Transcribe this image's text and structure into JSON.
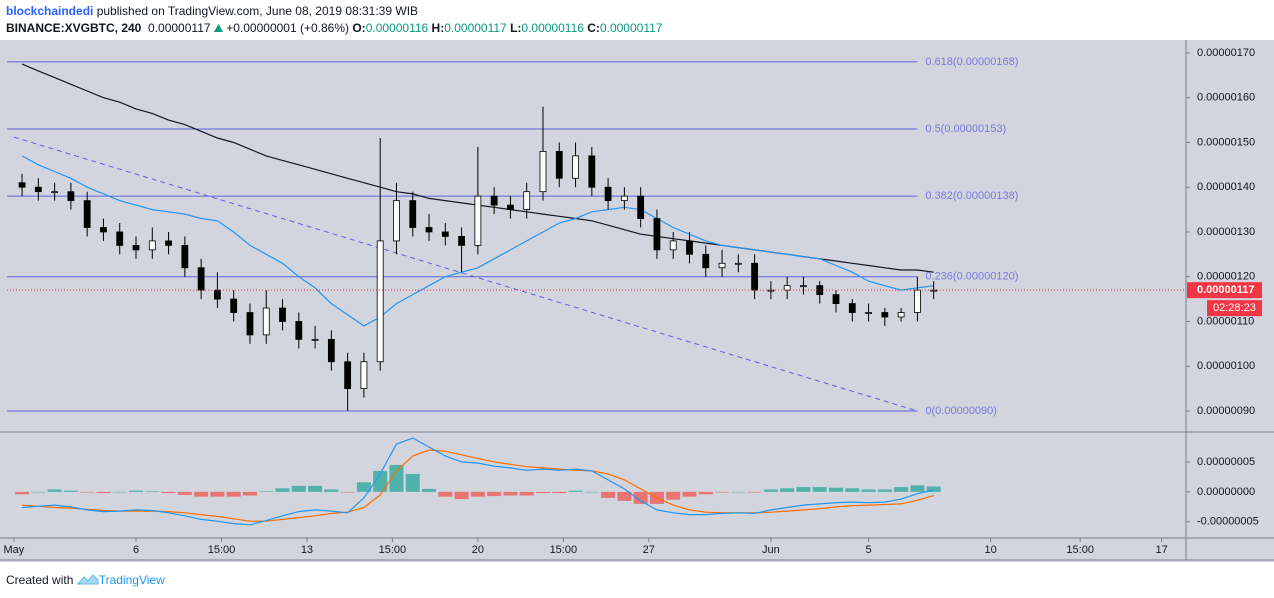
{
  "header": {
    "author": "blockchaindedi",
    "published": "published on TradingView.com, June 08, 2019 08:31:39 WIB",
    "symbol": "BINANCE:XVGBTC, 240",
    "last": "0.00000117",
    "change": "+0.00000001 (+0.86%)",
    "ohlc": [
      {
        "label": "O:",
        "value": "0.00000116"
      },
      {
        "label": "H:",
        "value": "0.00000117"
      },
      {
        "label": "L:",
        "value": "0.00000116"
      },
      {
        "label": "C:",
        "value": "0.00000117"
      }
    ]
  },
  "footer": {
    "text": "Created with",
    "brand": "TradingView"
  },
  "chart_data": [
    {
      "type": "candlestick",
      "x": [
        2,
        6,
        10,
        14,
        18,
        22,
        26,
        30,
        34,
        38,
        42,
        46,
        50,
        54,
        58,
        62,
        66,
        70,
        74,
        78,
        82,
        86,
        90,
        94,
        98,
        102,
        106,
        110,
        114,
        118,
        122,
        126,
        130,
        134,
        138,
        142,
        146,
        150,
        154,
        158,
        162,
        166,
        170,
        174,
        178,
        182,
        186,
        190,
        194,
        198,
        202,
        206,
        210,
        214,
        218,
        222,
        226
      ],
      "open": [
        1.41e-06,
        1.4e-06,
        1.39e-06,
        1.39e-06,
        1.37e-06,
        1.31e-06,
        1.3e-06,
        1.27e-06,
        1.26e-06,
        1.28e-06,
        1.27e-06,
        1.22e-06,
        1.17e-06,
        1.15e-06,
        1.12e-06,
        1.07e-06,
        1.13e-06,
        1.1e-06,
        1.06e-06,
        1.06e-06,
        1.01e-06,
        9.5e-07,
        1.01e-06,
        1.28e-06,
        1.37e-06,
        1.31e-06,
        1.3e-06,
        1.29e-06,
        1.27e-06,
        1.38e-06,
        1.36e-06,
        1.35e-06,
        1.39e-06,
        1.48e-06,
        1.42e-06,
        1.47e-06,
        1.4e-06,
        1.37e-06,
        1.38e-06,
        1.33e-06,
        1.26e-06,
        1.28e-06,
        1.25e-06,
        1.22e-06,
        1.23e-06,
        1.23e-06,
        1.17e-06,
        1.17e-06,
        1.18e-06,
        1.18e-06,
        1.16e-06,
        1.14e-06,
        1.12e-06,
        1.12e-06,
        1.11e-06,
        1.12e-06,
        1.17e-06
      ],
      "high": [
        1.43e-06,
        1.42e-06,
        1.41e-06,
        1.41e-06,
        1.39e-06,
        1.33e-06,
        1.32e-06,
        1.29e-06,
        1.31e-06,
        1.3e-06,
        1.29e-06,
        1.24e-06,
        1.21e-06,
        1.17e-06,
        1.14e-06,
        1.17e-06,
        1.15e-06,
        1.12e-06,
        1.09e-06,
        1.08e-06,
        1.03e-06,
        1.03e-06,
        1.51e-06,
        1.41e-06,
        1.39e-06,
        1.34e-06,
        1.32e-06,
        1.31e-06,
        1.49e-06,
        1.4e-06,
        1.38e-06,
        1.41e-06,
        1.58e-06,
        1.5e-06,
        1.5e-06,
        1.49e-06,
        1.42e-06,
        1.4e-06,
        1.4e-06,
        1.35e-06,
        1.3e-06,
        1.3e-06,
        1.27e-06,
        1.26e-06,
        1.25e-06,
        1.25e-06,
        1.19e-06,
        1.2e-06,
        1.2e-06,
        1.19e-06,
        1.17e-06,
        1.15e-06,
        1.14e-06,
        1.13e-06,
        1.13e-06,
        1.2e-06,
        1.19e-06
      ],
      "low": [
        1.38e-06,
        1.37e-06,
        1.37e-06,
        1.35e-06,
        1.29e-06,
        1.28e-06,
        1.25e-06,
        1.24e-06,
        1.24e-06,
        1.25e-06,
        1.2e-06,
        1.15e-06,
        1.13e-06,
        1.1e-06,
        1.05e-06,
        1.05e-06,
        1.08e-06,
        1.04e-06,
        1.04e-06,
        9.9e-07,
        9e-07,
        9.3e-07,
        9.9e-07,
        1.25e-06,
        1.29e-06,
        1.28e-06,
        1.27e-06,
        1.21e-06,
        1.25e-06,
        1.34e-06,
        1.33e-06,
        1.33e-06,
        1.37e-06,
        1.4e-06,
        1.4e-06,
        1.38e-06,
        1.35e-06,
        1.35e-06,
        1.31e-06,
        1.24e-06,
        1.24e-06,
        1.23e-06,
        1.2e-06,
        1.2e-06,
        1.21e-06,
        1.15e-06,
        1.15e-06,
        1.15e-06,
        1.16e-06,
        1.14e-06,
        1.12e-06,
        1.1e-06,
        1.1e-06,
        1.09e-06,
        1.1e-06,
        1.1e-06,
        1.15e-06
      ],
      "close": [
        1.4e-06,
        1.39e-06,
        1.39e-06,
        1.37e-06,
        1.31e-06,
        1.3e-06,
        1.27e-06,
        1.26e-06,
        1.28e-06,
        1.27e-06,
        1.22e-06,
        1.17e-06,
        1.15e-06,
        1.12e-06,
        1.07e-06,
        1.13e-06,
        1.1e-06,
        1.06e-06,
        1.06e-06,
        1.01e-06,
        9.5e-07,
        1.01e-06,
        1.28e-06,
        1.37e-06,
        1.31e-06,
        1.3e-06,
        1.29e-06,
        1.27e-06,
        1.38e-06,
        1.36e-06,
        1.35e-06,
        1.39e-06,
        1.48e-06,
        1.42e-06,
        1.47e-06,
        1.4e-06,
        1.37e-06,
        1.38e-06,
        1.33e-06,
        1.26e-06,
        1.28e-06,
        1.25e-06,
        1.22e-06,
        1.23e-06,
        1.23e-06,
        1.17e-06,
        1.17e-06,
        1.18e-06,
        1.18e-06,
        1.16e-06,
        1.14e-06,
        1.12e-06,
        1.12e-06,
        1.11e-06,
        1.12e-06,
        1.17e-06,
        1.17e-06
      ],
      "up_color": "#ffffff",
      "down_color": "#000000",
      "lines": [
        {
          "color": "#131722",
          "values": [
            1.675e-06,
            1.66e-06,
            1.645e-06,
            1.63e-06,
            1.615e-06,
            1.6e-06,
            1.59e-06,
            1.575e-06,
            1.565e-06,
            1.55e-06,
            1.54e-06,
            1.525e-06,
            1.51e-06,
            1.5e-06,
            1.485e-06,
            1.47e-06,
            1.46e-06,
            1.45e-06,
            1.44e-06,
            1.43e-06,
            1.42e-06,
            1.41e-06,
            1.4e-06,
            1.39e-06,
            1.385e-06,
            1.375e-06,
            1.37e-06,
            1.365e-06,
            1.36e-06,
            1.355e-06,
            1.35e-06,
            1.345e-06,
            1.34e-06,
            1.335e-06,
            1.33e-06,
            1.325e-06,
            1.315e-06,
            1.305e-06,
            1.295e-06,
            1.29e-06,
            1.285e-06,
            1.28e-06,
            1.275e-06,
            1.27e-06,
            1.265e-06,
            1.26e-06,
            1.255e-06,
            1.25e-06,
            1.245e-06,
            1.24e-06,
            1.235e-06,
            1.23e-06,
            1.225e-06,
            1.22e-06,
            1.215e-06,
            1.215e-06,
            1.21e-06
          ]
        },
        {
          "color": "#2196f3",
          "values": [
            1.47e-06,
            1.45e-06,
            1.435e-06,
            1.42e-06,
            1.4e-06,
            1.385e-06,
            1.37e-06,
            1.36e-06,
            1.35e-06,
            1.345e-06,
            1.34e-06,
            1.33e-06,
            1.325e-06,
            1.3e-06,
            1.27e-06,
            1.25e-06,
            1.23e-06,
            1.2e-06,
            1.175e-06,
            1.14e-06,
            1.115e-06,
            1.09e-06,
            1.11e-06,
            1.14e-06,
            1.16e-06,
            1.18e-06,
            1.2e-06,
            1.21e-06,
            1.22e-06,
            1.24e-06,
            1.26e-06,
            1.28e-06,
            1.3e-06,
            1.32e-06,
            1.33e-06,
            1.345e-06,
            1.35e-06,
            1.355e-06,
            1.35e-06,
            1.33e-06,
            1.31e-06,
            1.295e-06,
            1.28e-06,
            1.27e-06,
            1.265e-06,
            1.26e-06,
            1.255e-06,
            1.25e-06,
            1.245e-06,
            1.24e-06,
            1.225e-06,
            1.21e-06,
            1.19e-06,
            1.18e-06,
            1.17e-06,
            1.175e-06,
            1.18e-06
          ]
        }
      ],
      "fib_color": "#5d63e0",
      "fib_levels": [
        {
          "value": 1.68e-06,
          "label": "0.618(0.00000168)"
        },
        {
          "value": 1.53e-06,
          "label": "0.5(0.00000153)"
        },
        {
          "value": 1.38e-06,
          "label": "0.382(0.00000138)"
        },
        {
          "value": 1.2e-06,
          "label": "0.236(0.00000120)"
        },
        {
          "value": 9e-07,
          "label": "0(0.00000090)"
        }
      ],
      "trendline": {
        "color": "#5d63e0",
        "x": [
          0,
          222
        ],
        "values": [
          1.512e-06,
          9e-07
        ]
      },
      "last_price": 1.17e-06,
      "last_price_label": "0.00000117",
      "countdown": "02:28:23",
      "price_tag_color": "#f23645",
      "xlim": [
        -1.7,
        288
      ],
      "xticks": [
        {
          "value": 0,
          "label": "May"
        },
        {
          "value": 30,
          "label": "6"
        },
        {
          "value": 51,
          "label": "15:00"
        },
        {
          "value": 72,
          "label": "13"
        },
        {
          "value": 93,
          "label": "15:00"
        },
        {
          "value": 114,
          "label": "20"
        },
        {
          "value": 135,
          "label": "15:00"
        },
        {
          "value": 156,
          "label": "27"
        },
        {
          "value": 186,
          "label": "Jun"
        },
        {
          "value": 210,
          "label": "5"
        },
        {
          "value": 240,
          "label": "10"
        },
        {
          "value": 262,
          "label": "15:00"
        },
        {
          "value": 282,
          "label": "17"
        }
      ],
      "ylim": [
        8.53e-07,
        1.72e-06
      ],
      "yticks": [
        {
          "value": 1.7e-06,
          "label": "0.00000170"
        },
        {
          "value": 1.6e-06,
          "label": "0.00000160"
        },
        {
          "value": 1.5e-06,
          "label": "0.00000150"
        },
        {
          "value": 1.4e-06,
          "label": "0.00000140"
        },
        {
          "value": 1.3e-06,
          "label": "0.00000130"
        },
        {
          "value": 1.2e-06,
          "label": "0.00000120"
        },
        {
          "value": 1.1e-06,
          "label": "0.00000110"
        },
        {
          "value": 1e-06,
          "label": "0.00000100"
        },
        {
          "value": 9e-07,
          "label": "0.00000090"
        }
      ]
    },
    {
      "type": "macd",
      "x": [
        2,
        6,
        10,
        14,
        18,
        22,
        26,
        30,
        34,
        38,
        42,
        46,
        50,
        54,
        58,
        62,
        66,
        70,
        74,
        78,
        82,
        86,
        90,
        94,
        98,
        102,
        106,
        110,
        114,
        118,
        122,
        126,
        130,
        134,
        138,
        142,
        146,
        150,
        154,
        158,
        162,
        166,
        170,
        174,
        178,
        182,
        186,
        190,
        194,
        198,
        202,
        206,
        210,
        214,
        218,
        222,
        226
      ],
      "macd": [
        -2.6e-08,
        -2.4e-08,
        -2.2e-08,
        -2.5e-08,
        -3e-08,
        -3.3e-08,
        -3.2e-08,
        -3e-08,
        -3.1e-08,
        -3.5e-08,
        -4e-08,
        -4.6e-08,
        -4.9e-08,
        -5.3e-08,
        -5.5e-08,
        -4.8e-08,
        -4e-08,
        -3.3e-08,
        -3e-08,
        -3.2e-08,
        -3.5e-08,
        -1e-08,
        3e-08,
        8e-08,
        9e-08,
        7.5e-08,
        6e-08,
        5e-08,
        4.8e-08,
        4.3e-08,
        4e-08,
        3.6e-08,
        3.8e-08,
        3.6e-08,
        3.8e-08,
        3.5e-08,
        2e-08,
        5e-09,
        -1.5e-08,
        -3e-08,
        -3.5e-08,
        -3.8e-08,
        -3.8e-08,
        -3.6e-08,
        -3.5e-08,
        -3.6e-08,
        -3e-08,
        -2.6e-08,
        -2.2e-08,
        -2e-08,
        -1.8e-08,
        -1.7e-08,
        -1.8e-08,
        -1.7e-08,
        -1.2e-08,
        -3e-09,
        3e-09
      ],
      "signal": [
        -2.2e-08,
        -2.4e-08,
        -2.6e-08,
        -2.7e-08,
        -2.9e-08,
        -3.1e-08,
        -3.2e-08,
        -3.2e-08,
        -3.2e-08,
        -3.3e-08,
        -3.5e-08,
        -3.8e-08,
        -4.1e-08,
        -4.5e-08,
        -4.9e-08,
        -4.9e-08,
        -4.6e-08,
        -4.3e-08,
        -4e-08,
        -3.6e-08,
        -3.4e-08,
        -2.6e-08,
        -5e-09,
        3.5e-08,
        6e-08,
        7e-08,
        6.8e-08,
        6.2e-08,
        5.6e-08,
        5e-08,
        4.6e-08,
        4.2e-08,
        4e-08,
        3.8e-08,
        3.6e-08,
        3.5e-08,
        3e-08,
        2e-08,
        5e-09,
        -1e-08,
        -2.2e-08,
        -3e-08,
        -3.4e-08,
        -3.5e-08,
        -3.5e-08,
        -3.5e-08,
        -3.4e-08,
        -3.2e-08,
        -3e-08,
        -2.8e-08,
        -2.5e-08,
        -2.3e-08,
        -2.2e-08,
        -2.1e-08,
        -2e-08,
        -1.4e-08,
        -6e-09
      ],
      "histogram": [
        -4e-09,
        0,
        4e-09,
        2e-09,
        -1e-09,
        -2e-09,
        0,
        2e-09,
        1e-09,
        -2e-09,
        -5e-09,
        -8e-09,
        -8e-09,
        -8e-09,
        -6e-09,
        1e-09,
        6e-09,
        1e-08,
        1e-08,
        4e-09,
        -1e-09,
        1.6e-08,
        3.5e-08,
        4.5e-08,
        3e-08,
        5e-09,
        -8e-09,
        -1.2e-08,
        -8e-09,
        -7e-09,
        -6e-09,
        -6e-09,
        -2e-09,
        -2e-09,
        2e-09,
        0,
        -1e-08,
        -1.5e-08,
        -2e-08,
        -2e-08,
        -1.3e-08,
        -8e-09,
        -4e-09,
        -1e-09,
        0,
        -1e-09,
        4e-09,
        6e-09,
        8e-09,
        8e-09,
        7e-09,
        6e-09,
        4e-09,
        4e-09,
        8e-09,
        1.1e-08,
        9e-09
      ],
      "macd_color": "#2196f3",
      "signal_color": "#ff6d00",
      "hist_up_color": "#26a69a",
      "hist_down_color": "#ef5350",
      "xlim": [
        -1.7,
        288
      ],
      "ylim": [
        -7.7e-08,
        1e-07
      ],
      "yticks": [
        {
          "value": 5e-08,
          "label": "0.00000005"
        },
        {
          "value": 0,
          "label": "0.00000000"
        },
        {
          "value": -5e-08,
          "label": "-0.00000005"
        }
      ]
    }
  ]
}
